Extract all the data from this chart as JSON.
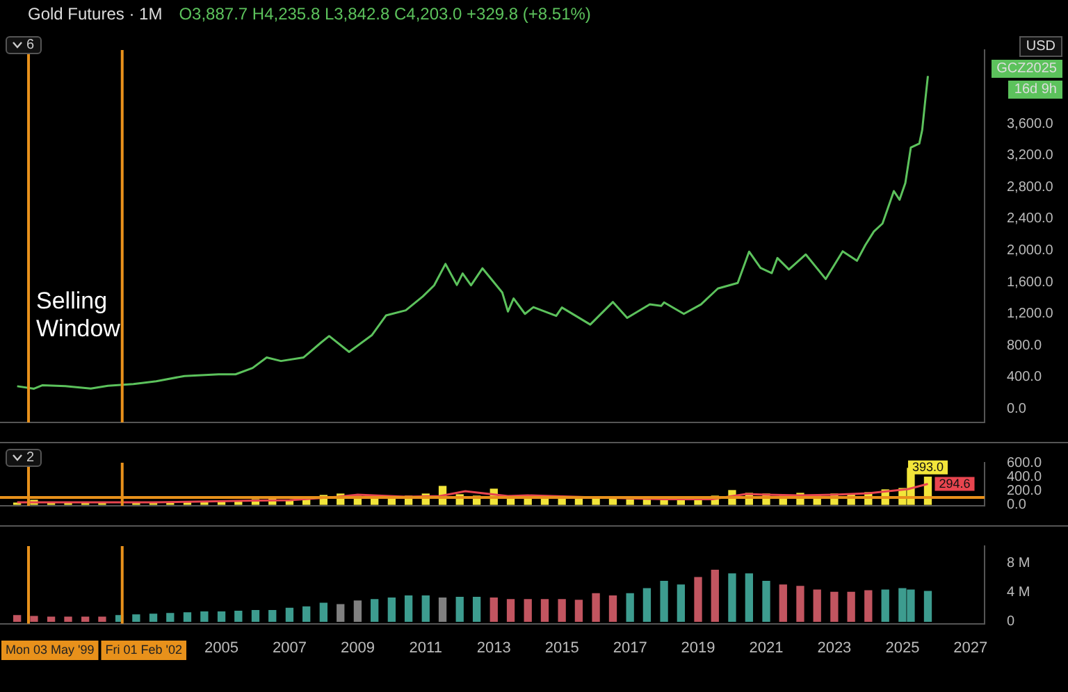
{
  "chart_data": [
    {
      "type": "line",
      "title": "Gold Futures · 1M",
      "subtitle": "O3,887.7 H4,235.8 L3,842.8 C4,203.0 +329.8 (+8.51%)",
      "tick_labels": "y",
      "xlim": [
        "1998-07",
        "2027-06"
      ],
      "ylim": [
        -170,
        4530
      ],
      "yticks": [
        {
          "value": 0,
          "label": "0.0"
        },
        {
          "value": 400,
          "label": "400.0"
        },
        {
          "value": 800,
          "label": "800.0"
        },
        {
          "value": 1200,
          "label": "1,200.0"
        },
        {
          "value": 1600,
          "label": "1,600.0"
        },
        {
          "value": 2000,
          "label": "2,000.0"
        },
        {
          "value": 2400,
          "label": "2,400.0"
        },
        {
          "value": 2800,
          "label": "2,800.0"
        },
        {
          "value": 3200,
          "label": "3,200.0"
        },
        {
          "value": 3600,
          "label": "3,600.0"
        }
      ],
      "x": [
        "1999-01",
        "1999-07",
        "1999-10",
        "2000-06",
        "2001-03",
        "2001-09",
        "2002-06",
        "2003-02",
        "2003-12",
        "2004-12",
        "2005-06",
        "2005-12",
        "2006-05",
        "2006-10",
        "2007-06",
        "2007-12",
        "2008-03",
        "2008-10",
        "2009-06",
        "2009-11",
        "2010-06",
        "2010-12",
        "2011-04",
        "2011-08",
        "2011-12",
        "2012-02",
        "2012-05",
        "2012-09",
        "2013-04",
        "2013-06",
        "2013-08",
        "2013-12",
        "2014-03",
        "2014-11",
        "2015-01",
        "2015-11",
        "2016-07",
        "2016-12",
        "2017-08",
        "2017-12",
        "2018-01",
        "2018-08",
        "2019-02",
        "2019-08",
        "2020-03",
        "2020-07",
        "2020-11",
        "2021-03",
        "2021-05",
        "2021-09",
        "2022-03",
        "2022-10",
        "2023-04",
        "2023-09",
        "2023-12",
        "2024-03",
        "2024-06",
        "2024-10",
        "2024-12",
        "2025-02",
        "2025-04",
        "2025-07",
        "2025-08",
        "2025-09",
        "2025-10"
      ],
      "series": [
        {
          "color": "#5cc25c",
          "values": [
            287,
            256,
            300,
            288,
            258,
            293,
            315,
            350,
            416,
            438,
            437,
            517,
            650,
            605,
            650,
            834,
            920,
            720,
            930,
            1180,
            1245,
            1420,
            1560,
            1830,
            1565,
            1710,
            1560,
            1775,
            1470,
            1230,
            1395,
            1200,
            1285,
            1175,
            1280,
            1065,
            1350,
            1150,
            1320,
            1300,
            1345,
            1200,
            1320,
            1520,
            1590,
            1985,
            1780,
            1715,
            1905,
            1760,
            1950,
            1640,
            1990,
            1870,
            2070,
            2240,
            2340,
            2750,
            2640,
            2850,
            3300,
            3350,
            3520,
            3873,
            4203
          ]
        }
      ],
      "ref_lines": [
        {
          "axis": "x",
          "value": "1999-05-03",
          "color": "#e8911b"
        },
        {
          "axis": "x",
          "value": "2002-02-01",
          "color": "#e8911b"
        }
      ],
      "annotations": [
        "6",
        "Selling Window",
        "USD",
        "GCZ2025",
        "16d 9h"
      ]
    },
    {
      "type": "bar",
      "tick_labels": "y",
      "xlim": [
        "1998-07",
        "2027-06"
      ],
      "ylim": [
        -20,
        600
      ],
      "yticks": [
        {
          "value": 0,
          "label": "0.0"
        },
        {
          "value": 200,
          "label": "200.0"
        },
        {
          "value": 400,
          "label": "400.0"
        },
        {
          "value": 600,
          "label": "600.0"
        }
      ],
      "x": [
        "1999-01",
        "1999-07",
        "2000-01",
        "2000-07",
        "2001-01",
        "2001-07",
        "2002-01",
        "2002-07",
        "2003-01",
        "2003-07",
        "2004-01",
        "2004-07",
        "2005-01",
        "2005-07",
        "2006-01",
        "2006-07",
        "2007-01",
        "2007-07",
        "2008-01",
        "2008-07",
        "2009-01",
        "2009-07",
        "2010-01",
        "2010-07",
        "2011-01",
        "2011-07",
        "2012-01",
        "2012-07",
        "2013-01",
        "2013-07",
        "2014-01",
        "2014-07",
        "2015-01",
        "2015-07",
        "2016-01",
        "2016-07",
        "2017-01",
        "2017-07",
        "2018-01",
        "2018-07",
        "2019-01",
        "2019-07",
        "2020-01",
        "2020-07",
        "2021-01",
        "2021-07",
        "2022-01",
        "2022-07",
        "2023-01",
        "2023-07",
        "2024-01",
        "2024-07",
        "2025-01",
        "2025-04",
        "2025-10"
      ],
      "series": [
        {
          "color": "#f2e53a",
          "values": [
            20,
            60,
            25,
            20,
            15,
            15,
            null,
            20,
            25,
            30,
            35,
            30,
            35,
            40,
            70,
            90,
            60,
            80,
            130,
            150,
            120,
            100,
            110,
            120,
            150,
            260,
            140,
            120,
            220,
            110,
            90,
            80,
            80,
            90,
            110,
            80,
            70,
            70,
            60,
            60,
            80,
            120,
            200,
            160,
            150,
            130,
            160,
            130,
            150,
            140,
            170,
            210,
            230,
            520,
            393
          ],
          "value_labels": [
            null,
            null,
            null,
            null,
            null,
            null,
            null,
            null,
            null,
            null,
            null,
            null,
            null,
            null,
            null,
            null,
            null,
            null,
            null,
            null,
            null,
            null,
            null,
            null,
            null,
            null,
            null,
            null,
            null,
            null,
            null,
            null,
            null,
            null,
            null,
            null,
            null,
            null,
            null,
            null,
            null,
            null,
            null,
            null,
            null,
            null,
            null,
            null,
            null,
            null,
            null,
            null,
            null,
            null,
            "393.0"
          ]
        },
        {
          "type": "line",
          "color": "#e8454f",
          "x": [
            "1999-01",
            "2003-01",
            "2006-01",
            "2007-01",
            "2008-06",
            "2009-01",
            "2010-06",
            "2011-06",
            "2012-03",
            "2013-06",
            "2014-01",
            "2016-01",
            "2018-01",
            "2019-06",
            "2020-06",
            "2021-01",
            "2022-01",
            "2023-01",
            "2024-01",
            "2025-03",
            "2025-10"
          ],
          "values": [
            30,
            30,
            55,
            60,
            110,
            140,
            110,
            120,
            190,
            120,
            130,
            100,
            75,
            75,
            150,
            140,
            130,
            140,
            160,
            220,
            294.6
          ],
          "value_labels": [
            null,
            null,
            null,
            null,
            null,
            null,
            null,
            null,
            null,
            null,
            null,
            null,
            null,
            null,
            null,
            null,
            null,
            null,
            null,
            null,
            "294.6"
          ]
        }
      ],
      "ref_lines": [
        {
          "axis": "y",
          "value": 100,
          "color": "#e8911b"
        },
        {
          "axis": "x",
          "value": "1999-05-03",
          "color": "#e8911b"
        },
        {
          "axis": "x",
          "value": "2002-02-01",
          "color": "#e8911b"
        }
      ],
      "annotations": [
        "2"
      ]
    },
    {
      "type": "bar",
      "xlim": [
        "1998-07",
        "2027-06"
      ],
      "ylim": [
        -0.3,
        10.3
      ],
      "xticks": [
        "2005",
        "2007",
        "2009",
        "2011",
        "2013",
        "2015",
        "2017",
        "2019",
        "2021",
        "2023",
        "2025",
        "2027"
      ],
      "yticks": [
        0,
        {
          "value": 4,
          "label": "4 M"
        },
        {
          "value": 8,
          "label": "8 M"
        }
      ],
      "x": [
        "1999-01",
        "1999-07",
        "2000-01",
        "2000-07",
        "2001-01",
        "2001-07",
        "2002-01",
        "2002-07",
        "2003-01",
        "2003-07",
        "2004-01",
        "2004-07",
        "2005-01",
        "2005-07",
        "2006-01",
        "2006-07",
        "2007-01",
        "2007-07",
        "2008-01",
        "2008-07",
        "2009-01",
        "2009-07",
        "2010-01",
        "2010-07",
        "2011-01",
        "2011-07",
        "2012-01",
        "2012-07",
        "2013-01",
        "2013-07",
        "2014-01",
        "2014-07",
        "2015-01",
        "2015-07",
        "2016-01",
        "2016-07",
        "2017-01",
        "2017-07",
        "2018-01",
        "2018-07",
        "2019-01",
        "2019-07",
        "2020-01",
        "2020-07",
        "2021-01",
        "2021-07",
        "2022-01",
        "2022-07",
        "2023-01",
        "2023-07",
        "2024-01",
        "2024-07",
        "2025-01",
        "2025-04",
        "2025-10"
      ],
      "series": [
        {
          "values": [
            0.8,
            0.7,
            0.6,
            0.6,
            0.6,
            0.6,
            0.8,
            0.9,
            1.0,
            1.1,
            1.2,
            1.3,
            1.3,
            1.4,
            1.5,
            1.5,
            1.8,
            2.0,
            2.5,
            2.3,
            2.8,
            3.0,
            3.2,
            3.5,
            3.5,
            3.2,
            3.3,
            3.3,
            3.2,
            3.0,
            3.0,
            3.0,
            3.0,
            2.9,
            3.8,
            3.5,
            3.8,
            4.5,
            5.5,
            5.0,
            6.0,
            7.0,
            6.5,
            6.5,
            5.5,
            5.0,
            4.8,
            4.3,
            4.0,
            4.0,
            4.2,
            4.3,
            4.5,
            4.3,
            4.1
          ],
          "colors": [
            "#c25560",
            "#c25560",
            "#c25560",
            "#c25560",
            "#c25560",
            "#c25560",
            "#3d9c8f",
            "#3d9c8f",
            "#3d9c8f",
            "#3d9c8f",
            "#3d9c8f",
            "#3d9c8f",
            "#3d9c8f",
            "#3d9c8f",
            "#3d9c8f",
            "#3d9c8f",
            "#3d9c8f",
            "#3d9c8f",
            "#3d9c8f",
            "#808080",
            "#808080",
            "#3d9c8f",
            "#3d9c8f",
            "#3d9c8f",
            "#3d9c8f",
            "#808080",
            "#3d9c8f",
            "#3d9c8f",
            "#c25560",
            "#c25560",
            "#c25560",
            "#c25560",
            "#c25560",
            "#c25560",
            "#c25560",
            "#c25560",
            "#3d9c8f",
            "#3d9c8f",
            "#3d9c8f",
            "#3d9c8f",
            "#c25560",
            "#c25560",
            "#3d9c8f",
            "#3d9c8f",
            "#3d9c8f",
            "#c25560",
            "#c25560",
            "#c25560",
            "#c25560",
            "#c25560",
            "#c25560",
            "#3d9c8f",
            "#3d9c8f",
            "#3d9c8f",
            "#3d9c8f"
          ]
        }
      ],
      "ref_lines": [
        {
          "axis": "x",
          "value": "1999-05-03",
          "label": "Mon 03 May '99",
          "color": "#e8911b"
        },
        {
          "axis": "x",
          "value": "2002-02-01",
          "label": "Fri 01 Feb '02",
          "color": "#e8911b"
        }
      ]
    }
  ]
}
